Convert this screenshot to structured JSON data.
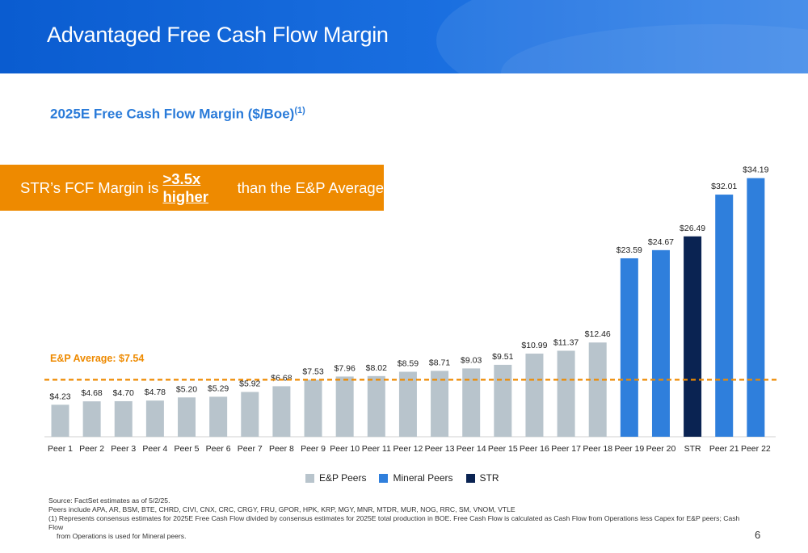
{
  "header": {
    "title": "Advantaged Free Cash Flow Margin"
  },
  "subtitle": {
    "text": "2025E Free Cash Flow Margin ($/Boe)",
    "superscript": "(1)"
  },
  "callout": {
    "prefix": "STR’s FCF Margin is ",
    "emphasis": ">3.5x higher",
    "suffix": " than the E&P Average"
  },
  "average": {
    "label": "E&P Average: $7.54",
    "value": 7.54,
    "color": "#ee8a00"
  },
  "colors": {
    "ep": "#b8c4cc",
    "mineral": "#2f7fdc",
    "str": "#0a2352"
  },
  "chart_data": {
    "type": "bar",
    "title": "2025E Free Cash Flow Margin ($/Boe)",
    "xlabel": "",
    "ylabel": "",
    "ylim": [
      0,
      36
    ],
    "grid": false,
    "legend_position": "bottom",
    "categories": [
      "Peer 1",
      "Peer 2",
      "Peer 3",
      "Peer 4",
      "Peer 5",
      "Peer 6",
      "Peer 7",
      "Peer 8",
      "Peer 9",
      "Peer 10",
      "Peer 11",
      "Peer 12",
      "Peer 13",
      "Peer 14",
      "Peer 15",
      "Peer 16",
      "Peer 17",
      "Peer 18",
      "Peer 19",
      "Peer 20",
      "STR",
      "Peer 21",
      "Peer 22"
    ],
    "values": [
      4.23,
      4.68,
      4.7,
      4.78,
      5.2,
      5.29,
      5.92,
      6.68,
      7.53,
      7.96,
      8.02,
      8.59,
      8.71,
      9.03,
      9.51,
      10.99,
      11.37,
      12.46,
      23.59,
      24.67,
      26.49,
      32.01,
      34.19
    ],
    "labels": [
      "$4.23",
      "$4.68",
      "$4.70",
      "$4.78",
      "$5.20",
      "$5.29",
      "$5.92",
      "$6.68",
      "$7.53",
      "$7.96",
      "$8.02",
      "$8.59",
      "$8.71",
      "$9.03",
      "$9.51",
      "$10.99",
      "$11.37",
      "$12.46",
      "$23.59",
      "$24.67",
      "$26.49",
      "$32.01",
      "$34.19"
    ],
    "groups": [
      "ep",
      "ep",
      "ep",
      "ep",
      "ep",
      "ep",
      "ep",
      "ep",
      "ep",
      "ep",
      "ep",
      "ep",
      "ep",
      "ep",
      "ep",
      "ep",
      "ep",
      "ep",
      "mineral",
      "mineral",
      "str",
      "mineral",
      "mineral"
    ],
    "reference_line": {
      "label": "E&P Average: $7.54",
      "value": 7.54,
      "style": "dashed"
    }
  },
  "legend": {
    "items": [
      {
        "key": "ep",
        "label": "E&P Peers"
      },
      {
        "key": "mineral",
        "label": "Mineral Peers"
      },
      {
        "key": "str",
        "label": "STR"
      }
    ]
  },
  "footnotes": {
    "source": "Source: FactSet estimates as of 5/2/25.",
    "peers": "Peers include APA, AR, BSM, BTE, CHRD, CIVI, CNX, CRC, CRGY, FRU, GPOR, HPK, KRP, MGY, MNR, MTDR, MUR, NOG, RRC, SM, VNOM, VTLE",
    "note1_line1": "(1) Represents consensus estimates for 2025E Free Cash Flow divided by consensus estimates for 2025E total production in BOE. Free Cash Flow is calculated as Cash Flow from Operations less Capex for E&P peers; Cash Flow",
    "note1_line2": "from Operations is used for Mineral peers."
  },
  "page": {
    "number": "6"
  }
}
